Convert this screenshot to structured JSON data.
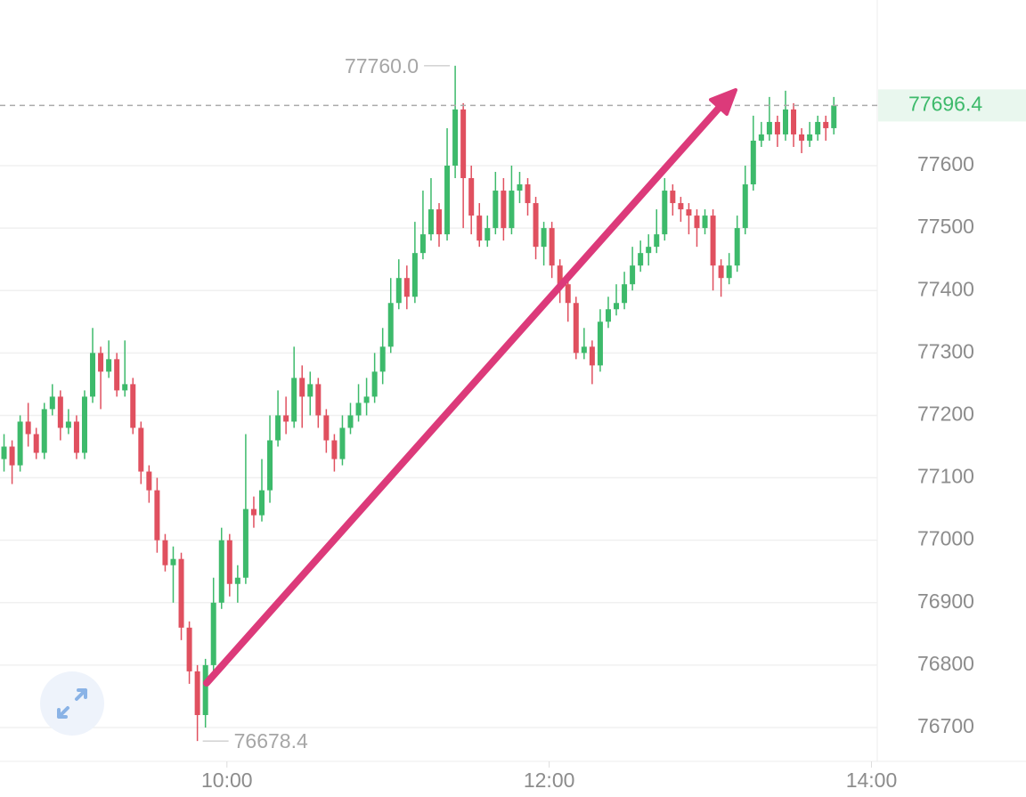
{
  "chart_data": {
    "type": "candlestick",
    "x": [
      517,
      520,
      523,
      526,
      529,
      532,
      535,
      538,
      541,
      544,
      547,
      550,
      553,
      556,
      559,
      562,
      565,
      568,
      571,
      574,
      577,
      580,
      583,
      586,
      589,
      592,
      595,
      598,
      601,
      604,
      607,
      610,
      613,
      616,
      619,
      622,
      625,
      628,
      631,
      634,
      637,
      640,
      643,
      646,
      649,
      652,
      655,
      658,
      661,
      664,
      667,
      670,
      673,
      676,
      679,
      682,
      685,
      688,
      691,
      694,
      697,
      700,
      703,
      706,
      709,
      712,
      715,
      718,
      721,
      724,
      727,
      730,
      733,
      736,
      739,
      742,
      745,
      748,
      751,
      754,
      757,
      760,
      763,
      766,
      769,
      772,
      775,
      778,
      781,
      784,
      787,
      790,
      793,
      796,
      799,
      802,
      805,
      808,
      811,
      814,
      817,
      820,
      823,
      826
    ],
    "open": [
      77130,
      77150,
      77120,
      77190,
      77170,
      77140,
      77210,
      77230,
      77180,
      77190,
      77140,
      77230,
      77300,
      77270,
      77290,
      77240,
      77250,
      77180,
      77110,
      77080,
      77000,
      76960,
      76970,
      76860,
      76790,
      76720,
      76800,
      76900,
      77000,
      76930,
      76940,
      77050,
      77040,
      77080,
      77160,
      77200,
      77190,
      77260,
      77230,
      77250,
      77200,
      77160,
      77130,
      77180,
      77200,
      77220,
      77230,
      77270,
      77310,
      77380,
      77420,
      77390,
      77460,
      77490,
      77530,
      77490,
      77600,
      77690,
      77580,
      77520,
      77480,
      77500,
      77560,
      77500,
      77560,
      77570,
      77540,
      77470,
      77500,
      77440,
      77410,
      77380,
      77300,
      77310,
      77280,
      77350,
      77370,
      77380,
      77410,
      77440,
      77460,
      77470,
      77490,
      77560,
      77540,
      77530,
      77520,
      77500,
      77520,
      77440,
      77420,
      77440,
      77500,
      77570,
      77640,
      77650,
      77670,
      77650,
      77690,
      77650,
      77640,
      77650,
      77670,
      77660
    ],
    "high": [
      77170,
      77160,
      77200,
      77220,
      77180,
      77220,
      77250,
      77240,
      77210,
      77200,
      77240,
      77340,
      77310,
      77320,
      77300,
      77320,
      77260,
      77190,
      77120,
      77100,
      77010,
      76990,
      76980,
      76870,
      76800,
      76810,
      76940,
      77020,
      77010,
      76960,
      77170,
      77070,
      77130,
      77200,
      77240,
      77230,
      77310,
      77280,
      77270,
      77260,
      77210,
      77170,
      77200,
      77220,
      77250,
      77260,
      77300,
      77340,
      77420,
      77450,
      77440,
      77510,
      77560,
      77580,
      77540,
      77660,
      77760,
      77700,
      77600,
      77540,
      77520,
      77590,
      77580,
      77600,
      77590,
      77580,
      77550,
      77510,
      77510,
      77450,
      77420,
      77390,
      77340,
      77320,
      77370,
      77390,
      77410,
      77430,
      77470,
      77480,
      77490,
      77530,
      77580,
      77570,
      77550,
      77540,
      77530,
      77530,
      77530,
      77450,
      77460,
      77520,
      77600,
      77680,
      77670,
      77710,
      77680,
      77720,
      77700,
      77660,
      77670,
      77680,
      77680,
      77710
    ],
    "low": [
      77110,
      77090,
      77110,
      77150,
      77130,
      77130,
      77200,
      77160,
      77170,
      77130,
      77130,
      77220,
      77210,
      77260,
      77230,
      77230,
      77170,
      77090,
      77060,
      76980,
      76950,
      76900,
      76840,
      76770,
      76678.4,
      76700,
      76790,
      76890,
      76910,
      76900,
      76930,
      77020,
      77030,
      77060,
      77150,
      77170,
      77180,
      77180,
      77200,
      77180,
      77140,
      77110,
      77120,
      77170,
      77190,
      77200,
      77220,
      77250,
      77300,
      77370,
      77370,
      77380,
      77450,
      77480,
      77470,
      77480,
      77580,
      77500,
      77490,
      77470,
      77470,
      77490,
      77480,
      77490,
      77540,
      77520,
      77450,
      77440,
      77420,
      77380,
      77350,
      77290,
      77290,
      77250,
      77270,
      77340,
      77360,
      77370,
      77400,
      77430,
      77440,
      77460,
      77480,
      77520,
      77510,
      77490,
      77470,
      77490,
      77400,
      77390,
      77410,
      77430,
      77490,
      77560,
      77630,
      77640,
      77630,
      77640,
      77630,
      77620,
      77630,
      77640,
      77640,
      77650
    ],
    "close": [
      77150,
      77120,
      77190,
      77170,
      77140,
      77210,
      77230,
      77180,
      77190,
      77140,
      77230,
      77300,
      77270,
      77290,
      77240,
      77250,
      77180,
      77110,
      77080,
      77000,
      76960,
      76970,
      76860,
      76790,
      76720,
      76800,
      76900,
      77000,
      76930,
      76940,
      77050,
      77040,
      77080,
      77160,
      77200,
      77190,
      77260,
      77230,
      77250,
      77200,
      77160,
      77130,
      77180,
      77200,
      77220,
      77230,
      77270,
      77310,
      77380,
      77420,
      77390,
      77460,
      77490,
      77530,
      77490,
      77600,
      77690,
      77580,
      77520,
      77480,
      77500,
      77560,
      77500,
      77560,
      77570,
      77540,
      77470,
      77500,
      77440,
      77410,
      77380,
      77300,
      77310,
      77280,
      77350,
      77370,
      77380,
      77410,
      77440,
      77460,
      77470,
      77490,
      77560,
      77540,
      77530,
      77520,
      77500,
      77520,
      77440,
      77420,
      77440,
      77500,
      77570,
      77640,
      77650,
      77670,
      77650,
      77690,
      77650,
      77640,
      77650,
      77670,
      77660,
      77696.4
    ],
    "up_color": "#3dba6b",
    "down_color": "#e0505f",
    "xlim": [
      515.5,
      841.5
    ],
    "xticks": [
      {
        "value": 600,
        "label": "10:00"
      },
      {
        "value": 720,
        "label": "12:00"
      },
      {
        "value": 840,
        "label": "14:00"
      }
    ],
    "ylim": [
      76645.8,
      77865.3
    ],
    "yticks": [
      76700,
      76800,
      76900,
      77000,
      77100,
      77200,
      77300,
      77400,
      77500,
      77600
    ],
    "grid": true,
    "high_marker": {
      "value": 77760,
      "label": "77760.0"
    },
    "low_marker": {
      "value": 76678.4,
      "label": "76678.4"
    },
    "last_price": 77696.4
  }
}
